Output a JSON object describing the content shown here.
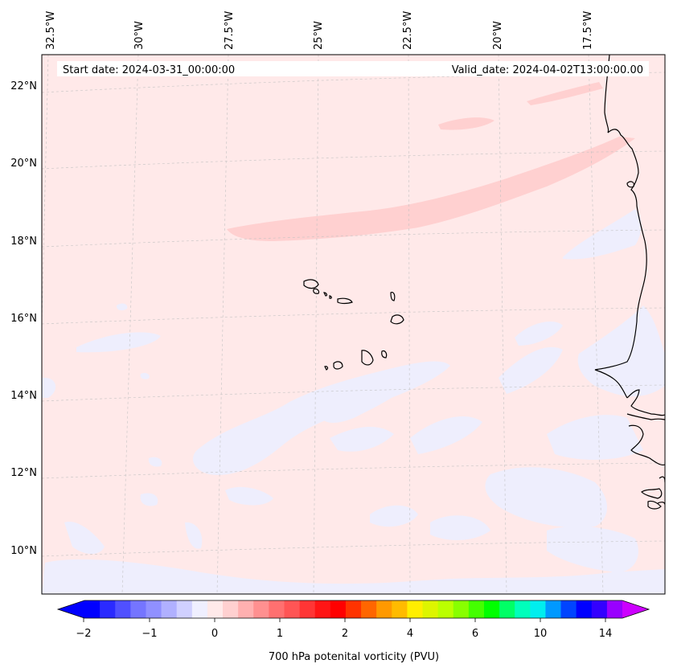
{
  "map": {
    "start_date": "Start date: 2024-03-31_00:00:00",
    "valid_date": "Valid_date: 2024-04-02T13:00:00.00",
    "lon_labels": [
      "32.5°W",
      "30°W",
      "27.5°W",
      "25°W",
      "22.5°W",
      "20°W",
      "17.5°W"
    ],
    "lat_labels": [
      "22°N",
      "20°N",
      "18°N",
      "16°N",
      "14°N",
      "12°N",
      "10°N"
    ],
    "background_color": "#ffe9e9"
  },
  "colorbar": {
    "label": "700 hPa potenital vorticity (PVU)",
    "tick_labels": [
      "−2",
      "−1",
      "0",
      "1",
      "2",
      "4",
      "6",
      "10",
      "14"
    ],
    "colors": [
      "#0000ff",
      "#2a2aff",
      "#5050ff",
      "#7575ff",
      "#9090ff",
      "#b0b0ff",
      "#d0d0ff",
      "#efefff",
      "#ffe9e9",
      "#ffd0d0",
      "#ffb0b0",
      "#ff9090",
      "#ff7070",
      "#ff5555",
      "#ff3535",
      "#ff1515",
      "#ff0000",
      "#ff3300",
      "#ff6600",
      "#ff9900",
      "#ffbb00",
      "#ffee00",
      "#ddf500",
      "#bbff00",
      "#88ff00",
      "#44ff00",
      "#00ff00",
      "#00ff66",
      "#00ffbb",
      "#00eeee",
      "#0099ff",
      "#0044ff",
      "#0000ff",
      "#3300ff",
      "#9900ff"
    ],
    "extend_low_color": "#0000ff",
    "extend_high_color": "#cc00ff"
  }
}
